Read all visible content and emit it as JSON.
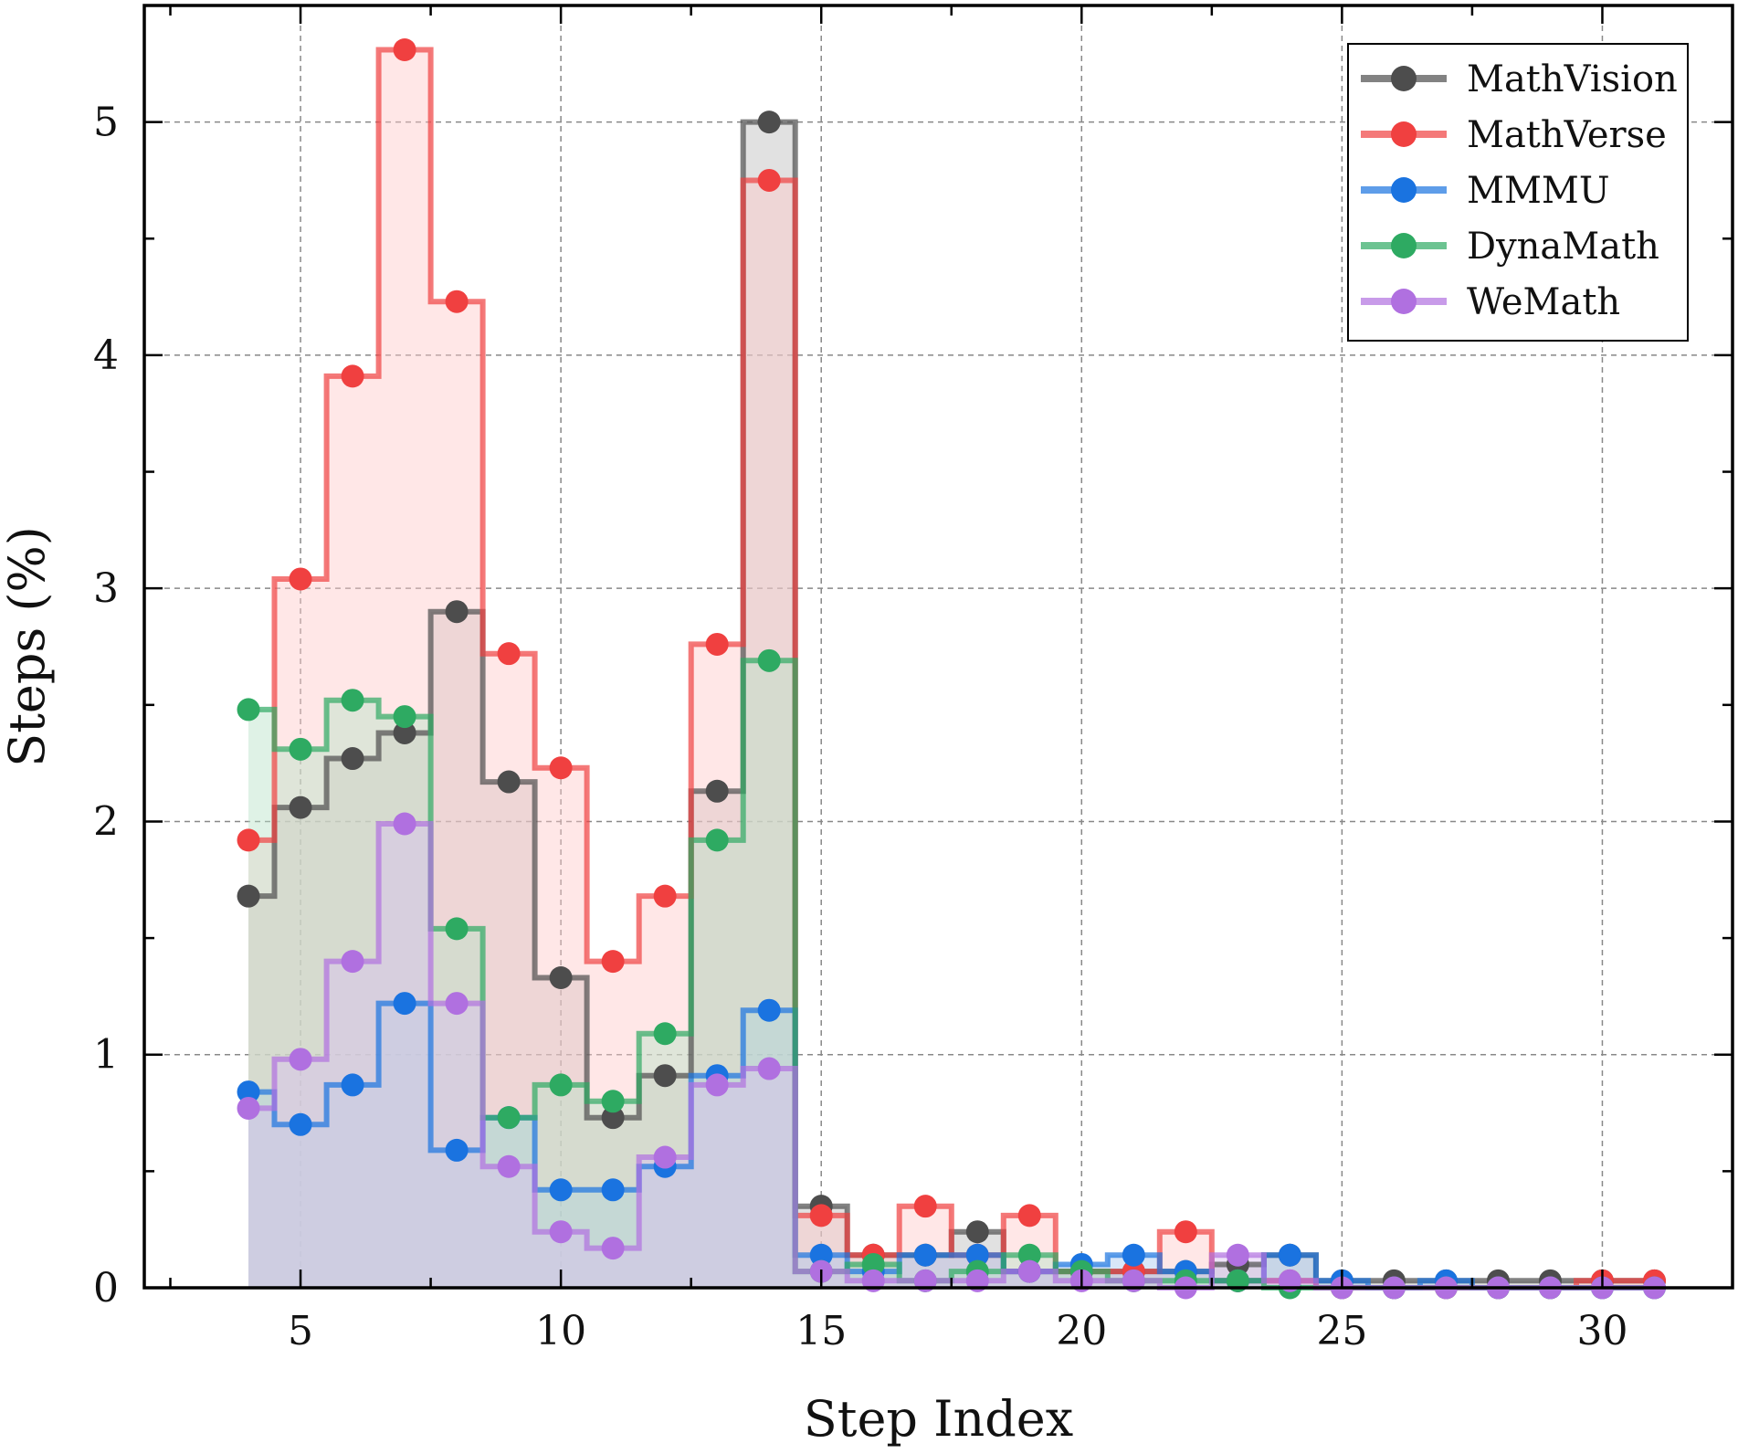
{
  "chart_data": {
    "type": "line",
    "subtype": "step-histogram",
    "xlabel": "Step Index",
    "ylabel": "Steps (%)",
    "xlim": [
      2.0,
      32.5
    ],
    "ylim": [
      0,
      5.5
    ],
    "xticks": [
      5,
      10,
      15,
      20,
      25,
      30
    ],
    "xtick_labels": [
      "5",
      "10",
      "15",
      "20",
      "25",
      "30"
    ],
    "yticks": [
      0,
      1,
      2,
      3,
      4,
      5
    ],
    "ytick_labels": [
      "0",
      "1",
      "2",
      "3",
      "4",
      "5"
    ],
    "grid": true,
    "legend_position": "top-right",
    "series": [
      {
        "name": "MathVision",
        "color": "#4d4d4d",
        "fill": "#bdbdbd",
        "x": [
          4,
          5,
          6,
          7,
          8,
          9,
          10,
          11,
          12,
          13,
          14,
          15,
          16,
          17,
          18,
          19,
          20,
          21,
          22,
          23,
          24,
          25,
          26,
          27,
          28,
          29,
          30,
          31
        ],
        "values": [
          1.68,
          2.06,
          2.27,
          2.38,
          2.9,
          2.17,
          1.33,
          0.73,
          0.91,
          2.13,
          5.0,
          0.35,
          0.14,
          0.14,
          0.24,
          0.07,
          0.07,
          0.07,
          0.07,
          0.1,
          0.14,
          0.03,
          0.03,
          0.03,
          0.03,
          0.03,
          0.03,
          0.03
        ]
      },
      {
        "name": "MathVerse",
        "color": "#f04040",
        "fill": "#ffc9c9",
        "x": [
          4,
          5,
          6,
          7,
          8,
          9,
          10,
          11,
          12,
          13,
          14,
          15,
          16,
          17,
          18,
          19,
          20,
          21,
          22,
          23,
          24,
          25,
          26,
          27,
          28,
          29,
          30,
          31
        ],
        "values": [
          1.92,
          3.04,
          3.91,
          5.31,
          4.23,
          2.72,
          2.23,
          1.4,
          1.68,
          2.76,
          4.75,
          0.31,
          0.14,
          0.35,
          0.14,
          0.31,
          0.07,
          0.07,
          0.24,
          0.03,
          0.03,
          0.0,
          0.0,
          0.0,
          0.0,
          0.0,
          0.03,
          0.03
        ]
      },
      {
        "name": "MMMU",
        "color": "#1a73e0",
        "fill": "#a9c7f0",
        "x": [
          4,
          5,
          6,
          7,
          8,
          9,
          10,
          11,
          12,
          13,
          14,
          15,
          16,
          17,
          18,
          19,
          20,
          21,
          22,
          23,
          24,
          25,
          26,
          27,
          28,
          29,
          30,
          31
        ],
        "values": [
          0.84,
          0.7,
          0.87,
          1.22,
          0.59,
          0.73,
          0.42,
          0.42,
          0.52,
          0.91,
          1.19,
          0.14,
          0.07,
          0.14,
          0.14,
          0.07,
          0.1,
          0.14,
          0.07,
          0.03,
          0.14,
          0.03,
          0.0,
          0.03,
          0.0,
          0.0,
          0.0,
          0.0
        ]
      },
      {
        "name": "DynaMath",
        "color": "#2eaa62",
        "fill": "#b8e3c7",
        "x": [
          4,
          5,
          6,
          7,
          8,
          9,
          10,
          11,
          12,
          13,
          14,
          15,
          16,
          17,
          18,
          19,
          20,
          21,
          22,
          23,
          24,
          25,
          26,
          27,
          28,
          29,
          30,
          31
        ],
        "values": [
          2.48,
          2.31,
          2.52,
          2.45,
          1.54,
          0.73,
          0.87,
          0.8,
          1.09,
          1.92,
          2.69,
          0.07,
          0.1,
          0.03,
          0.07,
          0.14,
          0.07,
          0.03,
          0.03,
          0.03,
          0.0,
          0.0,
          0.0,
          0.0,
          0.0,
          0.0,
          0.0,
          0.0
        ]
      },
      {
        "name": "WeMath",
        "color": "#b070e0",
        "fill": "#d9c2ef",
        "x": [
          4,
          5,
          6,
          7,
          8,
          9,
          10,
          11,
          12,
          13,
          14,
          15,
          16,
          17,
          18,
          19,
          20,
          21,
          22,
          23,
          24,
          25,
          26,
          27,
          28,
          29,
          30,
          31
        ],
        "values": [
          0.77,
          0.98,
          1.4,
          1.99,
          1.22,
          0.52,
          0.24,
          0.17,
          0.56,
          0.87,
          0.94,
          0.07,
          0.03,
          0.03,
          0.03,
          0.07,
          0.03,
          0.03,
          0.0,
          0.14,
          0.03,
          0.0,
          0.0,
          0.0,
          0.0,
          0.0,
          0.0,
          0.0
        ]
      }
    ]
  }
}
